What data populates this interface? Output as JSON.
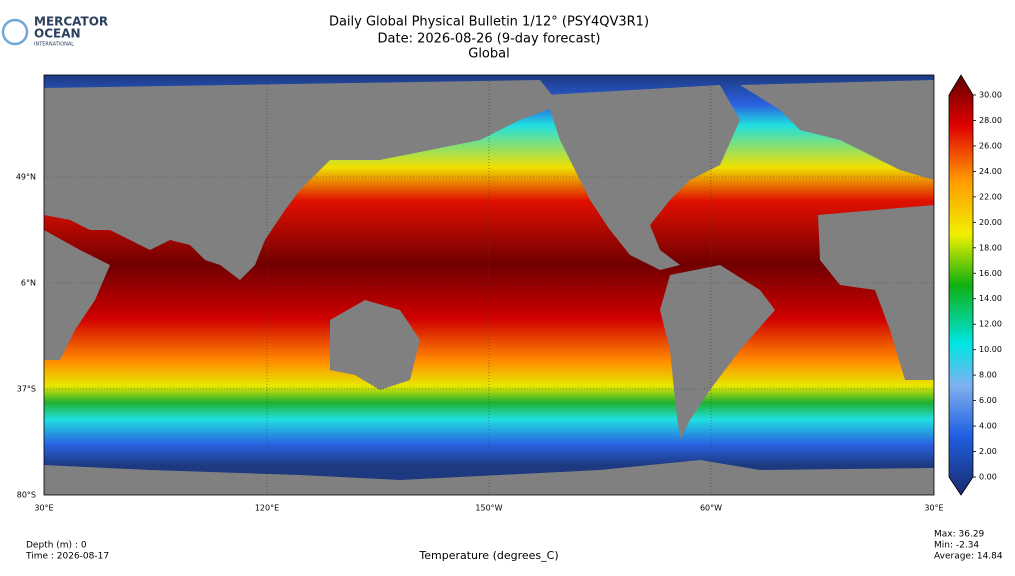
{
  "logo": {
    "line1": "MERCATOR",
    "line2": "OCEAN",
    "line3": "INTERNATIONAL"
  },
  "header": {
    "title": "Daily Global Physical Bulletin 1/12° (PSY4QV3R1)",
    "date": "Date: 2026-08-26 (9-day forecast)",
    "region": "Global"
  },
  "map": {
    "lat_labels": [
      "49°N",
      "6°N",
      "37°S",
      "80°S"
    ],
    "lon_labels": [
      "30°E",
      "120°E",
      "150°W",
      "60°W",
      "30°E"
    ]
  },
  "colorbar": {
    "ticks": [
      {
        "value": 0,
        "label": "0.00"
      },
      {
        "value": 2,
        "label": "2.00"
      },
      {
        "value": 4,
        "label": "4.00"
      },
      {
        "value": 6,
        "label": "6.00"
      },
      {
        "value": 8,
        "label": "8.00"
      },
      {
        "value": 10,
        "label": "10.00"
      },
      {
        "value": 12,
        "label": "12.00"
      },
      {
        "value": 14,
        "label": "14.00"
      },
      {
        "value": 16,
        "label": "16.00"
      },
      {
        "value": 18,
        "label": "18.00"
      },
      {
        "value": 20,
        "label": "20.00"
      },
      {
        "value": 22,
        "label": "22.00"
      },
      {
        "value": 24,
        "label": "24.00"
      },
      {
        "value": 26,
        "label": "26.00"
      },
      {
        "value": 28,
        "label": "28.00"
      },
      {
        "value": 30,
        "label": "30.00"
      }
    ]
  },
  "footer": {
    "depth": "Depth (m) : 0",
    "time": "Time : 2026-08-17",
    "variable": "Temperature (degrees_C)",
    "max": "Max: 36.29",
    "min": "Min: -2.34",
    "average": "Average: 14.84"
  }
}
